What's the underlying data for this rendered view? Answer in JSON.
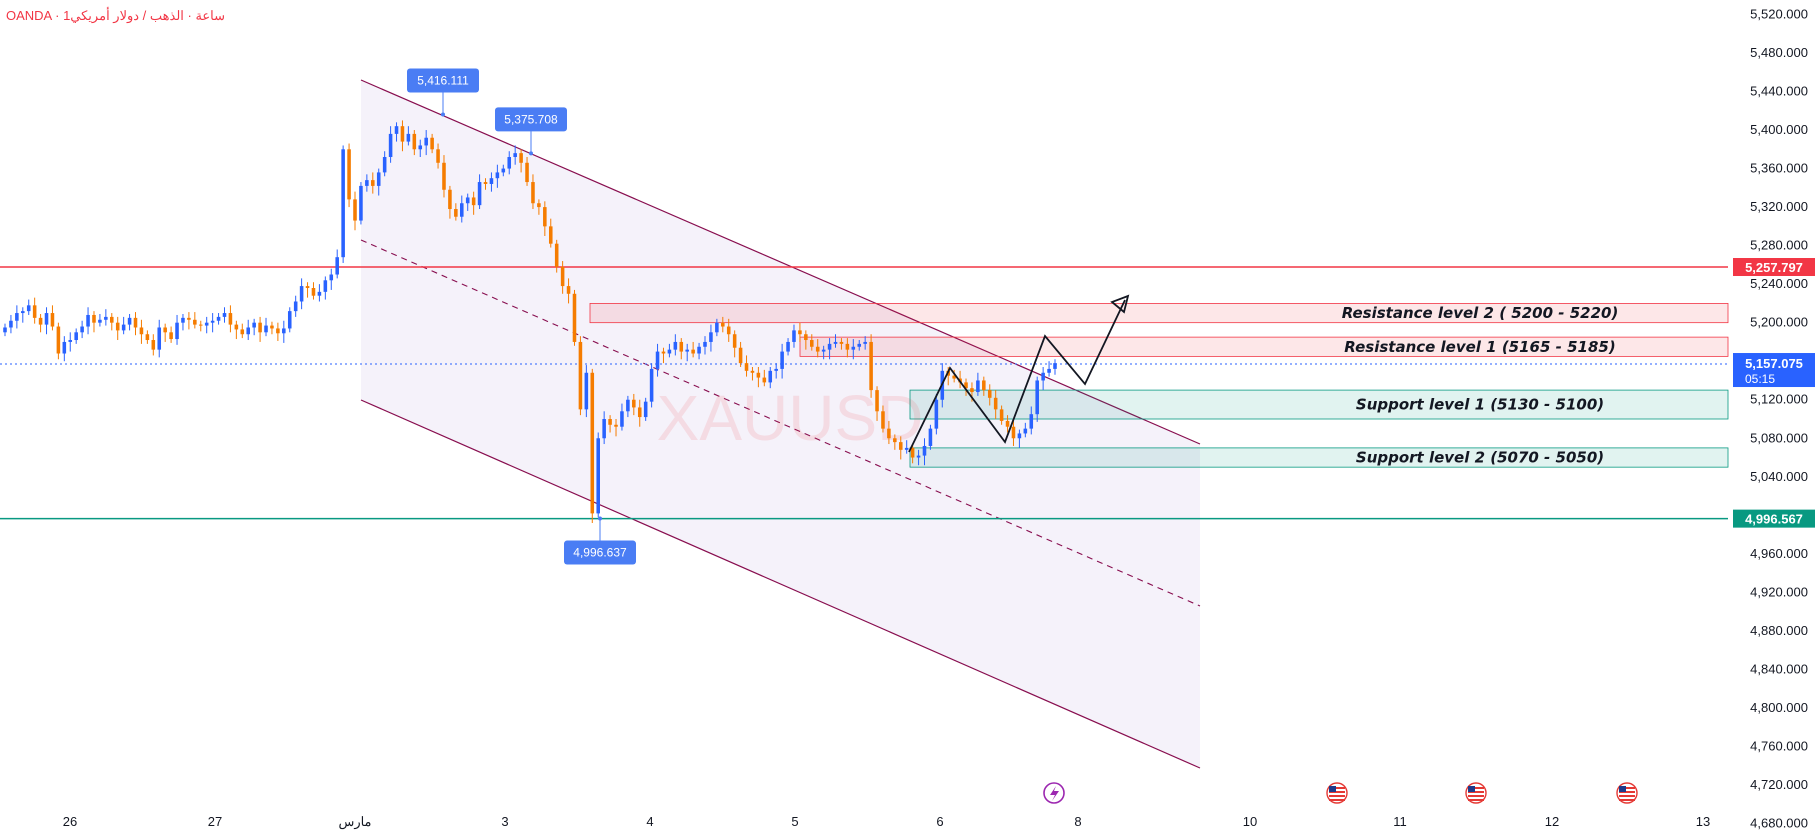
{
  "header": {
    "title": "OANDA · 1ساعة · الذهب / دولار أمريكي"
  },
  "watermark": {
    "text": "XAUUSD"
  },
  "colors": {
    "up": "#2962ff",
    "down": "#f57c00",
    "resistance_line": "#f23645",
    "support_line": "#089981",
    "channel": "#880e4f",
    "callout": "#4a7df4",
    "current_price_badge": "#2962ff"
  },
  "icons": {
    "lightning": "lightning-icon",
    "flag": "us-flag-icon"
  },
  "chart_data": {
    "type": "candlestick",
    "title": "",
    "xlabel": "",
    "ylabel": "",
    "ylim": [
      4665,
      5535
    ],
    "x_ticks": [
      "26",
      "27",
      "مارس",
      "3",
      "4",
      "5",
      "6",
      "8",
      "10",
      "11",
      "12",
      "13"
    ],
    "y_ticks": [
      "5,520.000",
      "5,480.000",
      "5,440.000",
      "5,400.000",
      "5,360.000",
      "5,320.000",
      "5,280.000",
      "5,240.000",
      "5,200.000",
      "5,120.000",
      "5,080.000",
      "5,040.000",
      "4,960.000",
      "4,920.000",
      "4,880.000",
      "4,840.000",
      "4,800.000",
      "4,760.000",
      "4,720.000",
      "4,680.000"
    ],
    "horizontal_lines": [
      {
        "name": "resistance",
        "value": 5257.797,
        "label": "5,257.797"
      },
      {
        "name": "support",
        "value": 4996.567,
        "label": "4,996.567"
      }
    ],
    "current_price": {
      "value": 5157.075,
      "label": "5,157.075",
      "countdown": "05:15"
    },
    "callouts": [
      {
        "label": "5,416.111",
        "value": 5416.111
      },
      {
        "label": "5,375.708",
        "value": 5375.708
      },
      {
        "label": "4,996.637",
        "value": 4996.637
      }
    ],
    "zones": [
      {
        "kind": "resistance",
        "label": "Resistance level 2  ( 5200 - 5220)",
        "low": 5200,
        "high": 5220
      },
      {
        "kind": "resistance",
        "label": "Resistance level 1  (5165 - 5185)",
        "low": 5165,
        "high": 5185
      },
      {
        "kind": "support",
        "label": "Support level 1  (5130 - 5100)",
        "low": 5100,
        "high": 5130
      },
      {
        "kind": "support",
        "label": "Support level 2  (5070 - 5050)",
        "low": 5050,
        "high": 5070
      }
    ],
    "closes": [
      5195,
      5202,
      5210,
      5212,
      5218,
      5205,
      5198,
      5210,
      5196,
      5168,
      5180,
      5182,
      5190,
      5196,
      5208,
      5200,
      5203,
      5206,
      5200,
      5192,
      5198,
      5205,
      5195,
      5188,
      5182,
      5172,
      5195,
      5190,
      5183,
      5200,
      5205,
      5203,
      5198,
      5197,
      5200,
      5202,
      5206,
      5210,
      5198,
      5193,
      5188,
      5195,
      5200,
      5190,
      5197,
      5194,
      5189,
      5194,
      5212,
      5222,
      5238,
      5236,
      5228,
      5232,
      5244,
      5250,
      5268,
      5380,
      5328,
      5306,
      5342,
      5348,
      5342,
      5356,
      5372,
      5396,
      5404,
      5388,
      5396,
      5380,
      5384,
      5392,
      5380,
      5366,
      5338,
      5318,
      5310,
      5324,
      5330,
      5322,
      5346,
      5344,
      5350,
      5356,
      5360,
      5372,
      5376,
      5366,
      5346,
      5324,
      5320,
      5300,
      5282,
      5258,
      5238,
      5230,
      5180,
      5110,
      5148,
      5002,
      5080,
      5100,
      5094,
      5092,
      5108,
      5120,
      5112,
      5102,
      5118,
      5152,
      5170,
      5168,
      5172,
      5180,
      5170,
      5172,
      5168,
      5175,
      5180,
      5190,
      5200,
      5196,
      5188,
      5174,
      5158,
      5150,
      5148,
      5143,
      5138,
      5150,
      5152,
      5170,
      5180,
      5192,
      5188,
      5182,
      5175,
      5170,
      5172,
      5178,
      5180,
      5178,
      5172,
      5175,
      5178,
      5180,
      5130,
      5108,
      5090,
      5080,
      5076,
      5068,
      5070,
      5060,
      5062,
      5072,
      5090,
      5120,
      5150,
      5145,
      5142,
      5138,
      5132,
      5128,
      5140,
      5130,
      5122,
      5110,
      5098,
      5092,
      5080,
      5085,
      5090,
      5105,
      5140,
      5148,
      5152,
      5158
    ]
  }
}
